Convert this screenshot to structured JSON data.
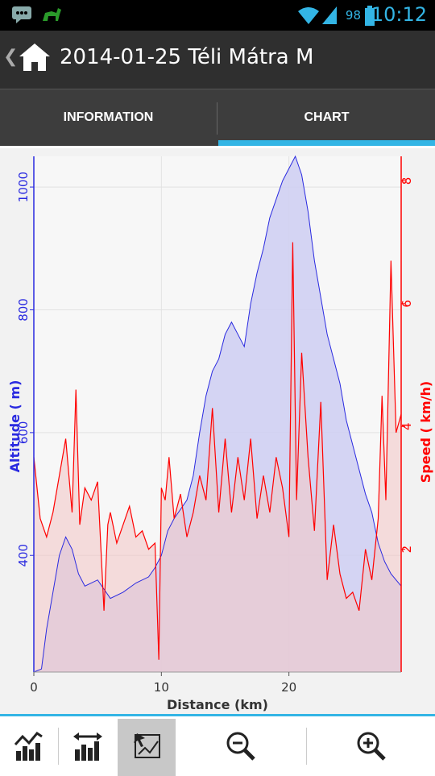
{
  "status_bar": {
    "battery": "98",
    "time": "10:12"
  },
  "action_bar": {
    "title": "2014-01-25 Téli Mátra M"
  },
  "tabs": [
    {
      "label": "INFORMATION",
      "selected": false
    },
    {
      "label": "CHART",
      "selected": true
    }
  ],
  "toolbar": [
    {
      "icon": "chart-line-bars-icon",
      "active": false
    },
    {
      "icon": "bar-width-arrows-icon",
      "active": false
    },
    {
      "icon": "pan-chart-icon",
      "active": true
    },
    {
      "icon": "zoom-out-icon",
      "active": false
    },
    {
      "icon": "zoom-in-icon",
      "active": false
    }
  ],
  "chart_data": {
    "type": "area",
    "xlabel": "Distance (km)",
    "ylabel_left": "Altitude ( m)",
    "ylabel_right": "Speed ( km/h)",
    "xlim": [
      0,
      28.8
    ],
    "x_ticks": [
      "0",
      "10",
      "20"
    ],
    "ylim_left": [
      210,
      1050
    ],
    "y_ticks_left": [
      "400",
      "600",
      "800",
      "1000"
    ],
    "ylim_right": [
      0,
      8.4
    ],
    "y_ticks_right": [
      "2",
      "4",
      "6",
      "8"
    ],
    "colors": {
      "altitude": "#2a2ae0",
      "speed": "#ff0000",
      "altitude_fill": "#cfcff2",
      "speed_fill": "#f2c8c8"
    },
    "series": [
      {
        "name": "Altitude ( m)",
        "axis": "left",
        "x": [
          0,
          0.6,
          1,
          1.5,
          2,
          2.5,
          3,
          3.5,
          4,
          5,
          5.5,
          6,
          7,
          8,
          9,
          9.5,
          10,
          10.5,
          11,
          12,
          12.5,
          13,
          13.5,
          14,
          14.5,
          15,
          15.5,
          16,
          16.5,
          17,
          17.5,
          18,
          18.5,
          19,
          19.5,
          20,
          20.5,
          21,
          21.5,
          22,
          22.5,
          23,
          23.5,
          24,
          24.5,
          25,
          25.5,
          26,
          26.5,
          27,
          27.5,
          28,
          28.8
        ],
        "y": [
          210,
          215,
          280,
          340,
          400,
          430,
          410,
          370,
          350,
          360,
          345,
          330,
          340,
          355,
          365,
          380,
          400,
          440,
          460,
          490,
          530,
          600,
          660,
          700,
          720,
          760,
          780,
          760,
          740,
          810,
          860,
          900,
          950,
          980,
          1010,
          1030,
          1050,
          1020,
          960,
          880,
          820,
          760,
          720,
          680,
          620,
          580,
          540,
          500,
          470,
          420,
          390,
          370,
          350
        ]
      },
      {
        "name": "Speed ( km/h)",
        "axis": "right",
        "x": [
          0,
          0.5,
          1,
          1.5,
          2,
          2.5,
          3,
          3.3,
          3.6,
          4,
          4.5,
          5,
          5.5,
          5.8,
          6,
          6.5,
          7,
          7.5,
          8,
          8.5,
          9,
          9.5,
          9.8,
          10,
          10.3,
          10.6,
          11,
          11.5,
          12,
          12.5,
          13,
          13.5,
          14,
          14.5,
          15,
          15.5,
          16,
          16.5,
          17,
          17.5,
          18,
          18.5,
          19,
          19.5,
          20,
          20.3,
          20.6,
          21,
          21.5,
          22,
          22.5,
          23,
          23.5,
          24,
          24.5,
          25,
          25.5,
          26,
          26.5,
          27,
          27.3,
          27.6,
          28,
          28.4,
          28.8
        ],
        "y": [
          3.5,
          2.5,
          2.2,
          2.6,
          3.2,
          3.8,
          2.6,
          4.6,
          2.4,
          3.0,
          2.8,
          3.1,
          1.0,
          2.4,
          2.6,
          2.1,
          2.4,
          2.7,
          2.2,
          2.3,
          2.0,
          2.1,
          0.2,
          3.0,
          2.8,
          3.5,
          2.5,
          2.9,
          2.2,
          2.6,
          3.2,
          2.8,
          4.3,
          2.6,
          3.8,
          2.6,
          3.5,
          2.8,
          3.8,
          2.5,
          3.2,
          2.6,
          3.5,
          3.0,
          2.2,
          7.0,
          2.8,
          5.2,
          3.5,
          2.3,
          4.4,
          1.5,
          2.4,
          1.6,
          1.2,
          1.3,
          1.0,
          2.0,
          1.5,
          2.5,
          4.5,
          2.8,
          6.7,
          3.9,
          4.2
        ]
      }
    ]
  }
}
